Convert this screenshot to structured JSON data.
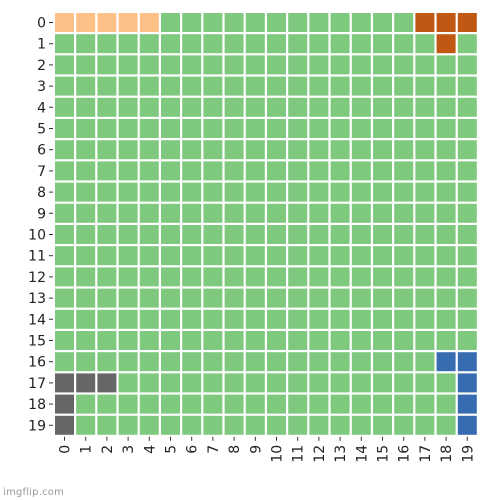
{
  "chart_data": {
    "type": "heatmap",
    "rows": 20,
    "cols": 20,
    "x_tick_labels": [
      "0",
      "1",
      "2",
      "3",
      "4",
      "5",
      "6",
      "7",
      "8",
      "9",
      "10",
      "11",
      "12",
      "13",
      "14",
      "15",
      "16",
      "17",
      "18",
      "19"
    ],
    "y_tick_labels": [
      "0",
      "1",
      "2",
      "3",
      "4",
      "5",
      "6",
      "7",
      "8",
      "9",
      "10",
      "11",
      "12",
      "13",
      "14",
      "15",
      "16",
      "17",
      "18",
      "19"
    ],
    "grid": false,
    "background_category": "green",
    "colors": {
      "green": "#7fc97f",
      "peach": "#fdc086",
      "orange": "#c05713",
      "blue": "#386cb0",
      "gray": "#666666"
    },
    "highlighted_cells": [
      {
        "row": 0,
        "col": 0,
        "category": "peach"
      },
      {
        "row": 0,
        "col": 1,
        "category": "peach"
      },
      {
        "row": 0,
        "col": 2,
        "category": "peach"
      },
      {
        "row": 0,
        "col": 3,
        "category": "peach"
      },
      {
        "row": 0,
        "col": 4,
        "category": "peach"
      },
      {
        "row": 0,
        "col": 17,
        "category": "orange"
      },
      {
        "row": 0,
        "col": 18,
        "category": "orange"
      },
      {
        "row": 0,
        "col": 19,
        "category": "orange"
      },
      {
        "row": 1,
        "col": 18,
        "category": "orange"
      },
      {
        "row": 16,
        "col": 18,
        "category": "blue"
      },
      {
        "row": 16,
        "col": 19,
        "category": "blue"
      },
      {
        "row": 17,
        "col": 19,
        "category": "blue"
      },
      {
        "row": 18,
        "col": 19,
        "category": "blue"
      },
      {
        "row": 19,
        "col": 19,
        "category": "blue"
      },
      {
        "row": 17,
        "col": 0,
        "category": "gray"
      },
      {
        "row": 17,
        "col": 1,
        "category": "gray"
      },
      {
        "row": 17,
        "col": 2,
        "category": "gray"
      },
      {
        "row": 18,
        "col": 0,
        "category": "gray"
      },
      {
        "row": 19,
        "col": 0,
        "category": "gray"
      }
    ]
  },
  "watermark": "imgflip.com"
}
